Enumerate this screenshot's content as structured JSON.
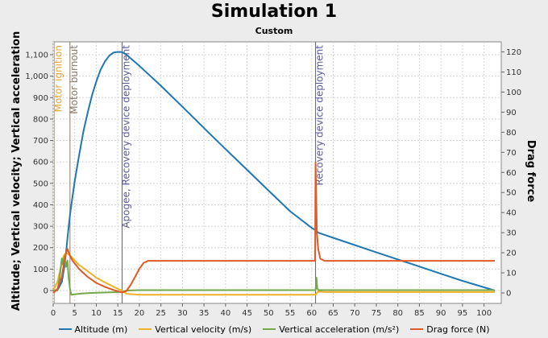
{
  "chart_data": {
    "type": "line",
    "title": "Simulation 1",
    "subtitle": "Custom",
    "xlabel": "",
    "ylabel_left": "Altitude; Vertical velocity; Vertical acceleration",
    "ylabel_right": "Drag force",
    "xlim": [
      0,
      104
    ],
    "ylim_left": [
      -60,
      1160
    ],
    "ylim_right": [
      -5.2,
      125
    ],
    "x_ticks": [
      0,
      5,
      10,
      15,
      20,
      25,
      30,
      35,
      40,
      45,
      50,
      55,
      60,
      65,
      70,
      75,
      80,
      85,
      90,
      95,
      100
    ],
    "y_left_ticks": [
      0,
      100,
      200,
      300,
      400,
      500,
      600,
      700,
      800,
      900,
      1000,
      1100
    ],
    "y_left_tick_labels": [
      "0",
      "100",
      "200",
      "300",
      "400",
      "500",
      "600",
      "700",
      "800",
      "900",
      "1,000",
      "1,100"
    ],
    "y_right_ticks": [
      0,
      10,
      20,
      30,
      40,
      50,
      60,
      70,
      80,
      90,
      100,
      110,
      120
    ],
    "grid": true,
    "legend_position": "bottom",
    "events": [
      {
        "x": 0.3,
        "label": "Motor ignition",
        "color": "#e8a33c"
      },
      {
        "x": 3.9,
        "label": "Motor burnout",
        "color": "#8c7b68"
      },
      {
        "x": 16.0,
        "label": "Apogee, Recovery device deployment",
        "color": "#5a5a9c"
      },
      {
        "x": 60.9,
        "label": "Recovery device deployment",
        "color": "#5a5a9c"
      }
    ],
    "series": [
      {
        "name": "Altitude (m)",
        "color": "#1f77b4",
        "axis": "left",
        "x": [
          0,
          1,
          2,
          2.5,
          3,
          3.5,
          4,
          5,
          6,
          7,
          8,
          9,
          10,
          11,
          12,
          13,
          14,
          15,
          16,
          17,
          20,
          25,
          30,
          35,
          40,
          45,
          50,
          55,
          60,
          60.9,
          61.5,
          65,
          70,
          75,
          80,
          85,
          90,
          95,
          100,
          102.5
        ],
        "y": [
          0,
          2,
          40,
          100,
          180,
          280,
          370,
          510,
          630,
          740,
          830,
          910,
          975,
          1030,
          1068,
          1095,
          1110,
          1113,
          1112,
          1100,
          1048,
          955,
          857,
          758,
          660,
          563,
          466,
          370,
          292,
          282,
          270,
          246,
          212,
          178,
          145,
          112,
          78,
          45,
          15,
          0
        ]
      },
      {
        "name": "Vertical velocity (m/s)",
        "color": "#f0b028",
        "axis": "left",
        "x": [
          0,
          1,
          2,
          2.5,
          3,
          3.5,
          4,
          5,
          6,
          8,
          10,
          12,
          14,
          15,
          16,
          17,
          20,
          30,
          40,
          50,
          58,
          60,
          60.9,
          61.5,
          63,
          70,
          80,
          90,
          100,
          102.5
        ],
        "y": [
          0,
          40,
          130,
          165,
          175,
          170,
          162,
          140,
          120,
          90,
          60,
          38,
          18,
          8,
          0,
          -15,
          -20,
          -20,
          -20,
          -20,
          -20,
          -20,
          -20,
          -5,
          -7,
          -7,
          -7,
          -7,
          -7,
          -7
        ]
      },
      {
        "name": "Vertical acceleration (m/s²)",
        "color": "#74a84a",
        "axis": "left",
        "x": [
          0,
          1,
          1.5,
          2,
          2.3,
          2.6,
          3,
          3.3,
          3.6,
          3.9,
          4.2,
          5,
          6,
          8,
          10,
          14,
          16,
          17,
          20,
          30,
          40,
          50,
          60,
          60.9,
          61.1,
          61.3,
          61.6,
          62,
          65,
          80,
          100,
          102.5
        ],
        "y": [
          0,
          0,
          60,
          150,
          120,
          160,
          110,
          140,
          60,
          10,
          -20,
          -18,
          -15,
          -12,
          -10,
          -8,
          -6,
          0,
          2,
          2,
          2,
          2,
          2,
          2,
          60,
          10,
          2,
          2,
          2,
          2,
          2,
          2
        ]
      },
      {
        "name": "Drag force (N)",
        "color": "#e05a25",
        "axis": "right",
        "x": [
          0,
          1,
          2,
          2.5,
          3,
          3.3,
          3.8,
          4.5,
          6,
          8,
          10,
          12,
          14,
          15,
          16,
          17,
          18,
          19,
          20,
          21,
          22,
          25,
          30,
          40,
          50,
          60,
          60.8,
          60.9,
          61.2,
          61.5,
          62,
          63,
          65,
          70,
          80,
          90,
          100,
          102.5
        ],
        "y": [
          0,
          2,
          8,
          15,
          20,
          22,
          19,
          16,
          12,
          8,
          5,
          3,
          1.5,
          0.8,
          0.2,
          1,
          4,
          8,
          12,
          15,
          16,
          16,
          16,
          16,
          16,
          16,
          16,
          65,
          30,
          22,
          17,
          16,
          16,
          16,
          16,
          16,
          16,
          16
        ]
      }
    ]
  }
}
